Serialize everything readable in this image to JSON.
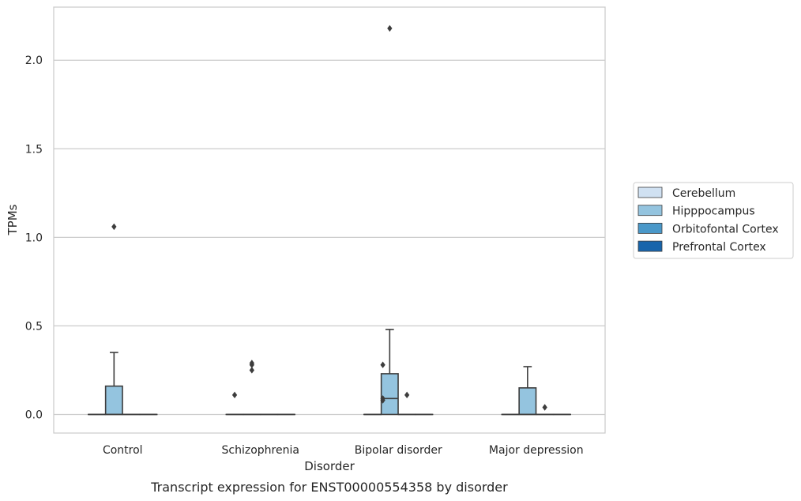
{
  "chart_data": {
    "type": "box",
    "caption": "Transcript expression for ENST00000554358 by disorder",
    "xlabel": "Disorder",
    "ylabel": "TPMs",
    "ylim": [
      -0.105,
      2.3
    ],
    "yticks": [
      0.0,
      0.5,
      1.0,
      1.5,
      2.0
    ],
    "ytick_labels": [
      "0.0",
      "0.5",
      "1.0",
      "1.5",
      "2.0"
    ],
    "grid": true,
    "legend_position": "right",
    "categories": [
      "Control",
      "Schizophrenia",
      "Bipolar disorder",
      "Major depression"
    ],
    "series": [
      {
        "name": "Cerebellum",
        "color": "#d0e1f2",
        "boxes": [
          {
            "q1": 0,
            "median": 0,
            "q3": 0,
            "whislo": 0,
            "whishi": 0,
            "fliers": []
          },
          {
            "q1": 0,
            "median": 0,
            "q3": 0,
            "whislo": 0,
            "whishi": 0,
            "fliers": [
              0.11
            ]
          },
          {
            "q1": 0,
            "median": 0,
            "q3": 0,
            "whislo": 0,
            "whishi": 0,
            "fliers": []
          },
          {
            "q1": 0,
            "median": 0,
            "q3": 0,
            "whislo": 0,
            "whishi": 0,
            "fliers": []
          }
        ]
      },
      {
        "name": "Hipppocampus",
        "color": "#94c4df",
        "boxes": [
          {
            "q1": 0,
            "median": 0,
            "q3": 0.16,
            "whislo": 0,
            "whishi": 0.35,
            "fliers": [
              1.06
            ]
          },
          {
            "q1": 0,
            "median": 0,
            "q3": 0,
            "whislo": 0,
            "whishi": 0,
            "fliers": [
              0.25,
              0.28,
              0.29
            ]
          },
          {
            "q1": 0,
            "median": 0.09,
            "q3": 0.23,
            "whislo": 0,
            "whishi": 0.48,
            "fliers": [
              2.18
            ]
          },
          {
            "q1": 0,
            "median": 0,
            "q3": 0.15,
            "whislo": 0,
            "whishi": 0.27,
            "fliers": []
          }
        ]
      },
      {
        "name": "Orbitofontal Cortex",
        "color": "#4a98c9",
        "boxes": [
          {
            "q1": 0,
            "median": 0,
            "q3": 0,
            "whislo": 0,
            "whishi": 0,
            "fliers": []
          },
          {
            "q1": 0,
            "median": 0,
            "q3": 0,
            "whislo": 0,
            "whishi": 0,
            "fliers": []
          },
          {
            "q1": 0,
            "median": 0,
            "q3": 0,
            "whislo": 0,
            "whishi": 0,
            "fliers": [
              0.11
            ]
          },
          {
            "q1": 0,
            "median": 0,
            "q3": 0,
            "whislo": 0,
            "whishi": 0,
            "fliers": [
              0.04
            ]
          }
        ]
      },
      {
        "name": "Prefrontal Cortex",
        "color": "#1764ab",
        "boxes": [
          {
            "q1": 0,
            "median": 0,
            "q3": 0,
            "whislo": 0,
            "whishi": 0,
            "fliers": []
          },
          {
            "q1": 0,
            "median": 0,
            "q3": 0,
            "whislo": 0,
            "whishi": 0,
            "fliers": []
          },
          {
            "q1": 0,
            "median": 0,
            "q3": 0,
            "whislo": 0,
            "whishi": 0,
            "fliers": []
          },
          {
            "q1": 0,
            "median": 0,
            "q3": 0,
            "whislo": 0,
            "whishi": 0,
            "fliers": []
          }
        ]
      }
    ],
    "extra_fliers": [
      {
        "category": 2,
        "series": 0,
        "values": [
          0.08,
          0.09,
          0.28
        ]
      }
    ]
  }
}
